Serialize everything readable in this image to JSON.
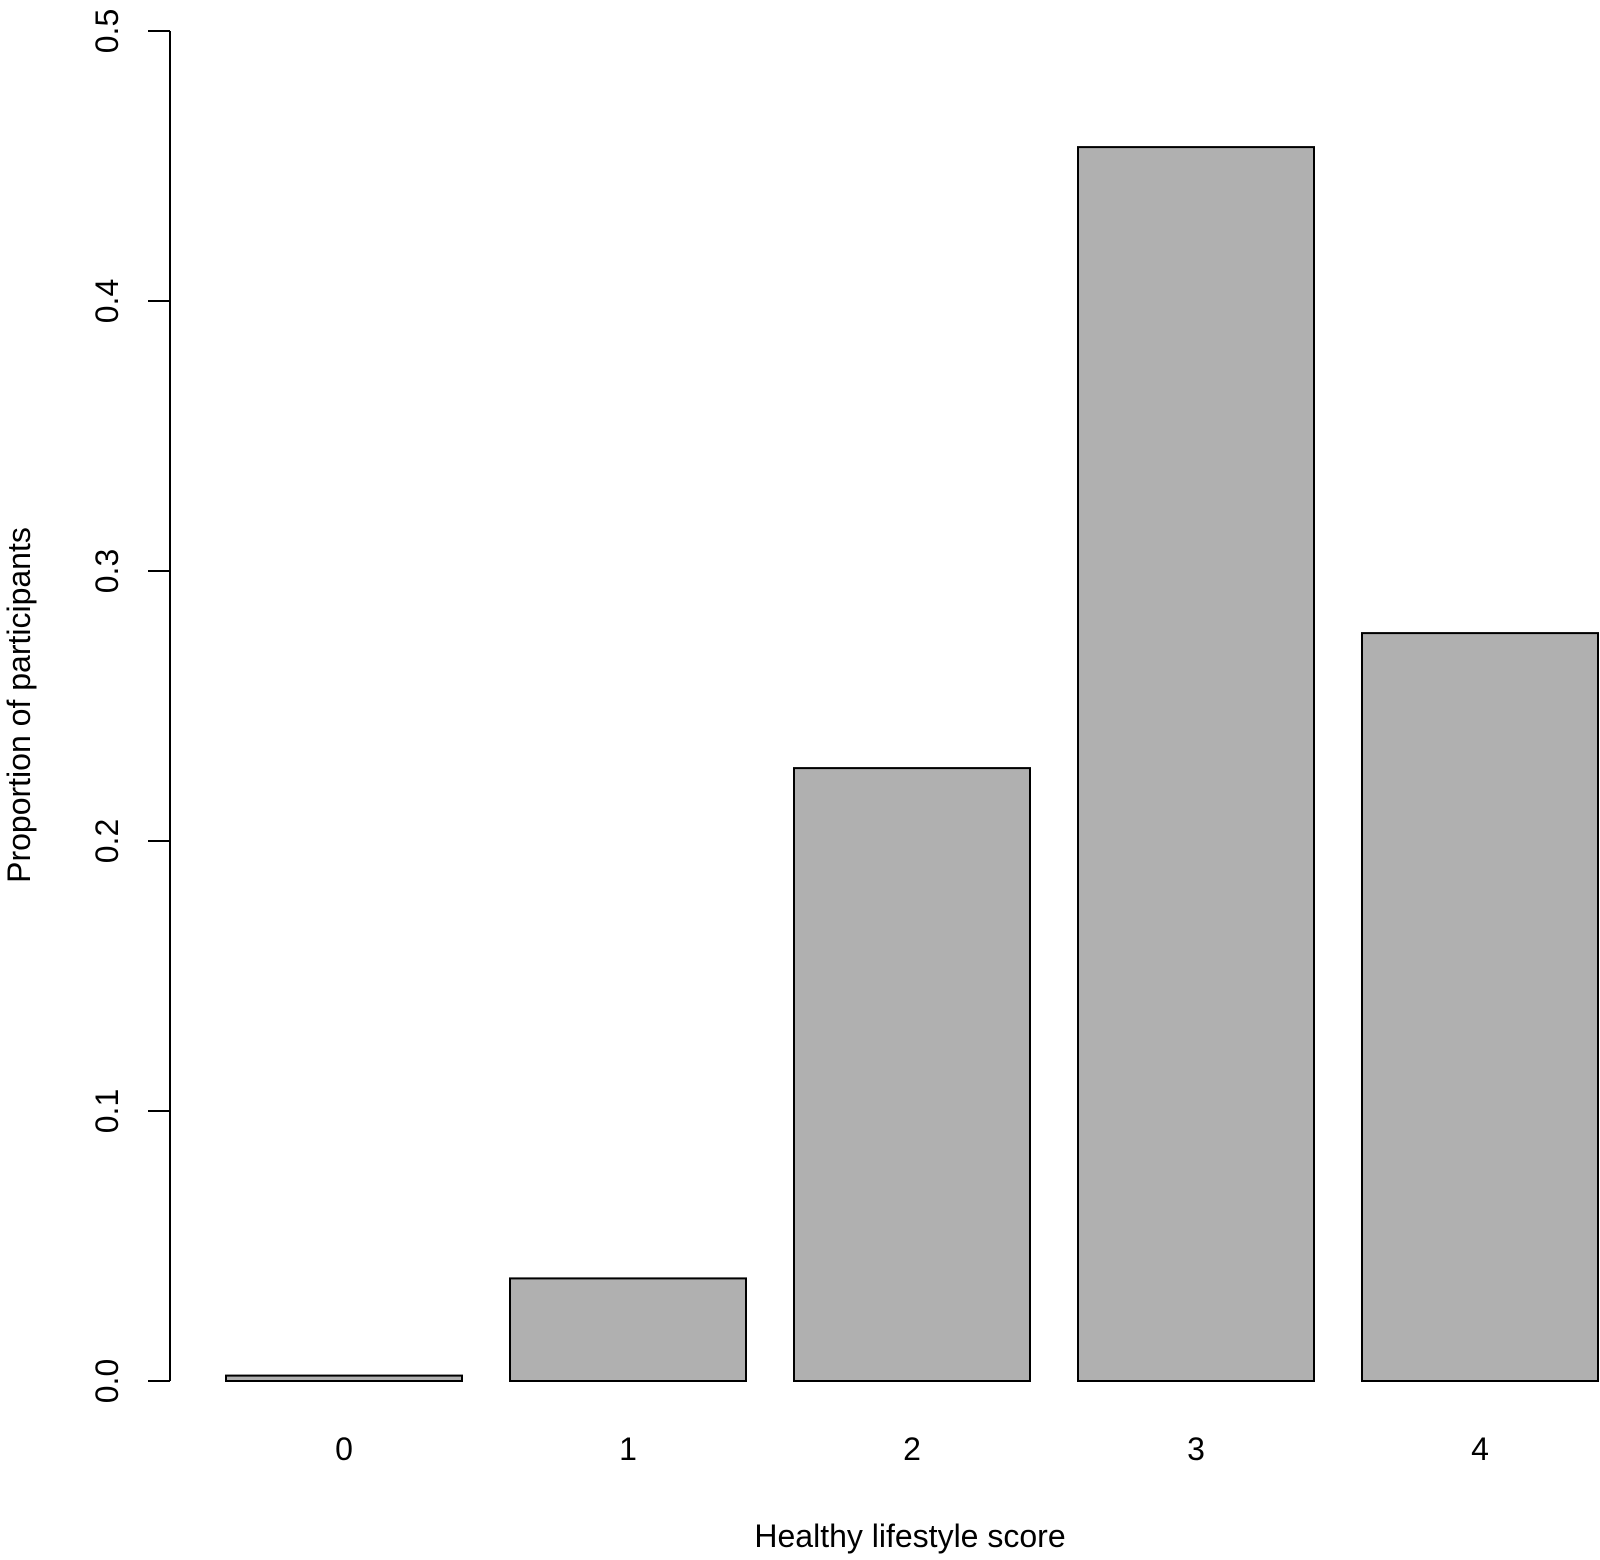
{
  "chart_data": {
    "type": "bar",
    "categories": [
      "0",
      "1",
      "2",
      "3",
      "4"
    ],
    "values": [
      0.002,
      0.038,
      0.227,
      0.457,
      0.277
    ],
    "xlabel": "Healthy lifestyle score",
    "ylabel": "Proportion of participants",
    "ylim": [
      0,
      0.5
    ],
    "yticks": [
      "0.0",
      "0.1",
      "0.2",
      "0.3",
      "0.4",
      "0.5"
    ],
    "bar_color": "#b0b0b0",
    "grid": false,
    "legend": "none"
  }
}
